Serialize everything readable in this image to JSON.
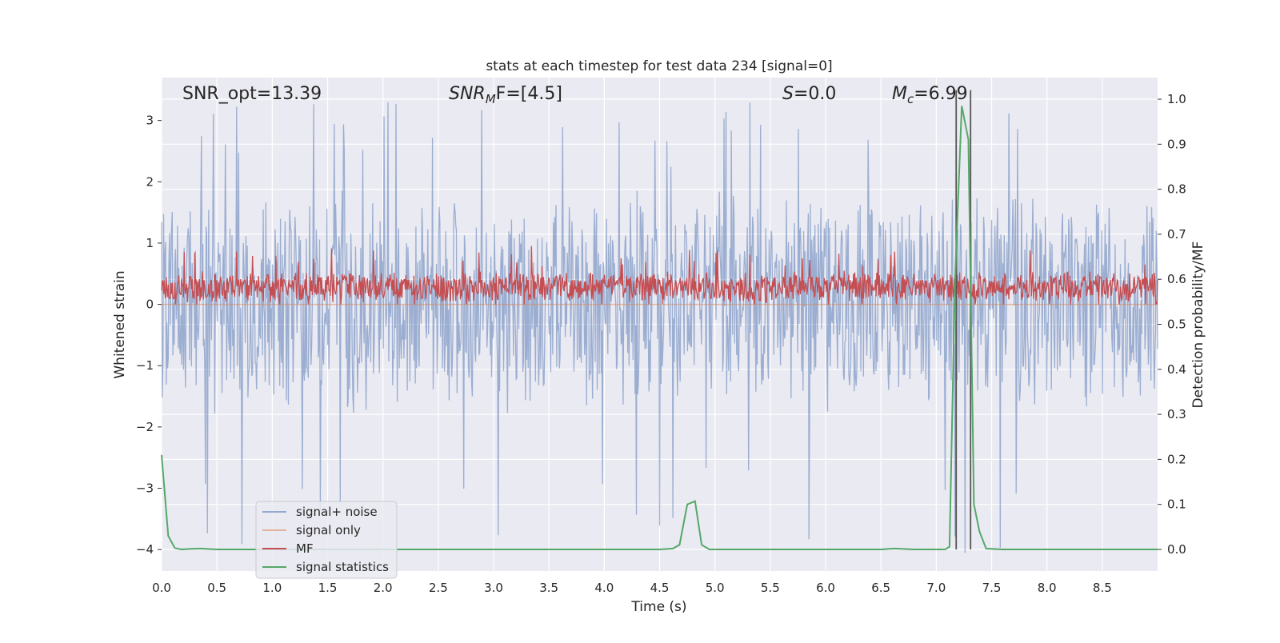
{
  "chart_data": {
    "type": "line",
    "title": "stats at each timestep for test data 234 [signal=0]",
    "xlabel": "Time (s)",
    "ylabel": "Whitened strain",
    "ylabel_right": "Detection probability/MF",
    "xlim": [
      0,
      9.0
    ],
    "ylim": [
      -4.35,
      3.7
    ],
    "ylim_right": [
      -0.048,
      1.048
    ],
    "x_ticks": [
      0.0,
      0.5,
      1.0,
      1.5,
      2.0,
      2.5,
      3.0,
      3.5,
      4.0,
      4.5,
      5.0,
      5.5,
      6.0,
      6.5,
      7.0,
      7.5,
      8.0,
      8.5
    ],
    "x_tick_labels": [
      "0.0",
      "0.5",
      "1.0",
      "1.5",
      "2.0",
      "2.5",
      "3.0",
      "3.5",
      "4.0",
      "4.5",
      "5.0",
      "5.5",
      "6.0",
      "6.5",
      "7.0",
      "7.5",
      "8.0",
      "8.5"
    ],
    "y_ticks": [
      3,
      2,
      1,
      0,
      -1,
      -2,
      -3,
      -4
    ],
    "y_tick_labels": [
      "3",
      "2",
      "1",
      "0",
      "−1",
      "−2",
      "−3",
      "−4"
    ],
    "y_right_ticks": [
      1.0,
      0.9,
      0.8,
      0.7,
      0.6,
      0.5,
      0.4,
      0.3,
      0.2,
      0.1,
      0.0
    ],
    "y_right_tick_labels": [
      "1.0",
      "0.9",
      "0.8",
      "0.7",
      "0.6",
      "0.5",
      "0.4",
      "0.3",
      "0.2",
      "0.1",
      "0.0"
    ],
    "annotations": {
      "snr_opt": "SNR_opt=13.39",
      "snr_mf_sym": "SNR",
      "snr_mf_sub": "M",
      "snr_mf_tail": "F=[4.5]",
      "s_sym": "S",
      "s_tail": "=0.0",
      "mc_sym": "M",
      "mc_sub": "c",
      "mc_tail": "=6.99"
    },
    "series": [
      {
        "name": "signal+ noise",
        "color": "#4c72b0",
        "alpha": 0.5,
        "style": "noise",
        "band_low": -1.8,
        "band_high": 1.9,
        "max": 3.3,
        "min": -4.1,
        "seed": 7
      },
      {
        "name": "signal only",
        "color": "#dd8452",
        "alpha": 0.5,
        "style": "flat",
        "value": 0.0
      },
      {
        "name": "MF",
        "color": "#c44e52",
        "alpha": 1.0,
        "style": "noise",
        "band_low": 0.02,
        "band_high": 0.55,
        "max": 0.95,
        "min": 0.0,
        "seed": 23
      },
      {
        "name": "signal statistics",
        "color": "#55a868",
        "axis": "right",
        "x": [
          0.0,
          0.06,
          0.12,
          0.18,
          0.25,
          0.35,
          0.5,
          1.0,
          2.0,
          3.0,
          4.0,
          4.5,
          4.62,
          4.68,
          4.75,
          4.82,
          4.88,
          4.95,
          5.2,
          6.0,
          6.5,
          6.62,
          6.8,
          7.0,
          7.08,
          7.12,
          7.17,
          7.23,
          7.29,
          7.34,
          7.39,
          7.45,
          7.6,
          8.0,
          9.0
        ],
        "y": [
          0.21,
          0.03,
          0.003,
          0.0,
          0.001,
          0.002,
          0.0,
          0.0,
          0.0,
          0.0,
          0.0,
          0.0,
          0.002,
          0.01,
          0.1,
          0.107,
          0.01,
          0.0,
          0.0,
          0.0,
          0.0,
          0.002,
          0.0,
          0.0,
          0.0,
          0.006,
          0.6,
          0.985,
          0.91,
          0.1,
          0.04,
          0.002,
          0.0,
          0.0,
          0.0
        ]
      }
    ],
    "vertical_lines": [
      {
        "x": 7.18,
        "color": "#555555"
      },
      {
        "x": 7.31,
        "color": "#555555"
      }
    ],
    "legend_position": "lower-left"
  }
}
